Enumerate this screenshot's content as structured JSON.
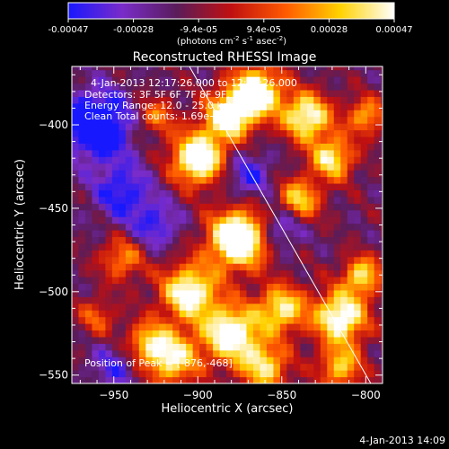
{
  "colorbar": {
    "ticks": [
      "-0.00047",
      "-0.00028",
      "-9.4e-05",
      "9.4e-05",
      "0.00028",
      "0.00047"
    ],
    "label_main": "(photons cm",
    "label_exp1": "-2",
    "label_mid": " s",
    "label_exp2": "-1",
    "label_end": " asec",
    "label_exp3": "-2",
    "label_close": ")",
    "colors": [
      "#1818ff",
      "#7a2cc8",
      "#5a1c5a",
      "#c01010",
      "#ff5a00",
      "#ffd200",
      "#ffffff"
    ]
  },
  "chart_data": {
    "type": "heatmap",
    "title": "Reconstructed RHESSI Image",
    "xlabel": "Heliocentric X (arcsec)",
    "ylabel": "Heliocentric Y (arcsec)",
    "xlim": [
      -975,
      -790
    ],
    "ylim": [
      -555,
      -365
    ],
    "x_ticks": [
      {
        "value": -950,
        "label": "−950"
      },
      {
        "value": -900,
        "label": "−900"
      },
      {
        "value": -850,
        "label": "−850"
      },
      {
        "value": -800,
        "label": "−800"
      }
    ],
    "y_ticks": [
      {
        "value": -400,
        "label": "−400"
      },
      {
        "value": -450,
        "label": "−450"
      },
      {
        "value": -500,
        "label": "−500"
      },
      {
        "value": -550,
        "label": "−550"
      }
    ],
    "value_range": [
      -0.00047,
      0.00047
    ],
    "peak": [
      -876,
      -468
    ],
    "limb_line": [
      [
        -905,
        -365
      ],
      [
        -797,
        -555
      ]
    ],
    "annotations": {
      "time": "4-Jan-2013 12:17:26.000 to 12:23:26.000",
      "detectors": "Detectors: 3F 5F 6F 7F 8F 9F, Att 0",
      "energy": "Energy Range: 12.0 - 25.0 keV",
      "clean": "Clean     Total counts: 1.69e+04",
      "peak_text": "Position of Peak = [-876,-468]"
    }
  },
  "footer": {
    "timestamp": "4-Jan-2013 14:09"
  }
}
